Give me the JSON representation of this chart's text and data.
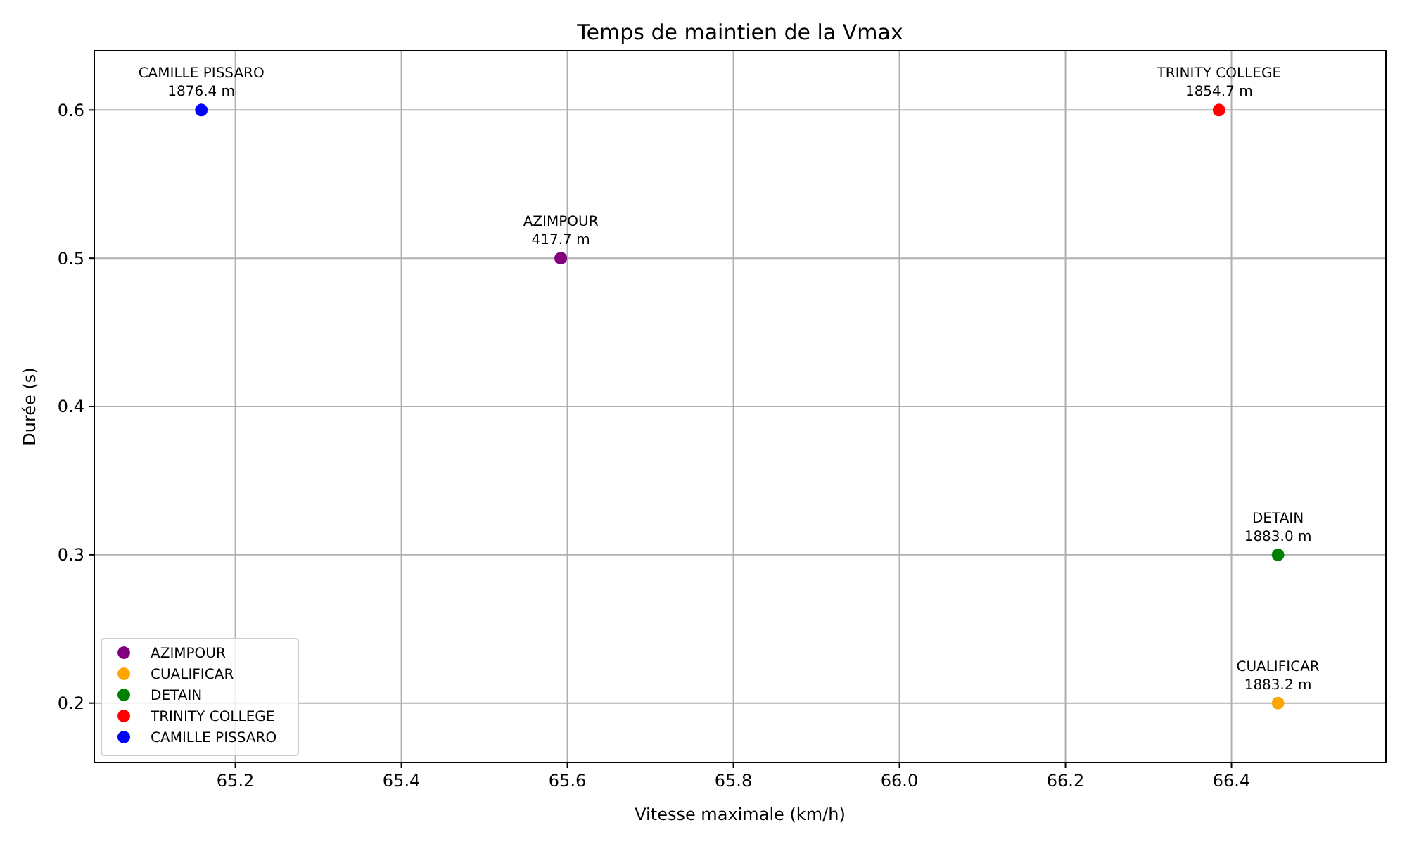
{
  "chart_data": {
    "type": "scatter",
    "title": "Temps de maintien de la Vmax",
    "xlabel": "Vitesse maximale (km/h)",
    "ylabel": "Durée (s)",
    "series": [
      {
        "name": "AZIMPOUR",
        "color": "#800080",
        "x": [
          65.592
        ],
        "values": [
          0.5
        ]
      },
      {
        "name": "CUALIFICAR",
        "color": "#ffa500",
        "x": [
          66.456
        ],
        "values": [
          0.2
        ]
      },
      {
        "name": "DETAIN",
        "color": "#008000",
        "x": [
          66.456
        ],
        "values": [
          0.3
        ]
      },
      {
        "name": "TRINITY COLLEGE",
        "color": "#ff0000",
        "x": [
          66.385
        ],
        "values": [
          0.6
        ]
      },
      {
        "name": "CAMILLE PISSARO",
        "color": "#0000ff",
        "x": [
          65.159
        ],
        "values": [
          0.6
        ]
      }
    ],
    "annotations": [
      {
        "text": "AZIMPOUR\n417.7 m",
        "x": 65.592,
        "y": 0.5
      },
      {
        "text": "CUALIFICAR\n1883.2 m",
        "x": 66.456,
        "y": 0.2
      },
      {
        "text": "DETAIN\n1883.0 m",
        "x": 66.456,
        "y": 0.3
      },
      {
        "text": "TRINITY COLLEGE\n1854.7 m",
        "x": 66.385,
        "y": 0.6
      },
      {
        "text": "CAMILLE PISSARO\n1876.4 m",
        "x": 65.159,
        "y": 0.6
      }
    ],
    "xlim": [
      65.03,
      66.586
    ],
    "xticks": [
      65.2,
      65.4,
      65.6,
      65.8,
      {
        "value": 66,
        "label": "66.0"
      },
      66.2,
      66.4
    ],
    "ylim": [
      0.16,
      0.64
    ],
    "yticks": [
      0.2,
      0.3,
      0.4,
      0.5,
      0.6
    ],
    "grid": true,
    "legend": "bottom left",
    "marker": "circle"
  }
}
